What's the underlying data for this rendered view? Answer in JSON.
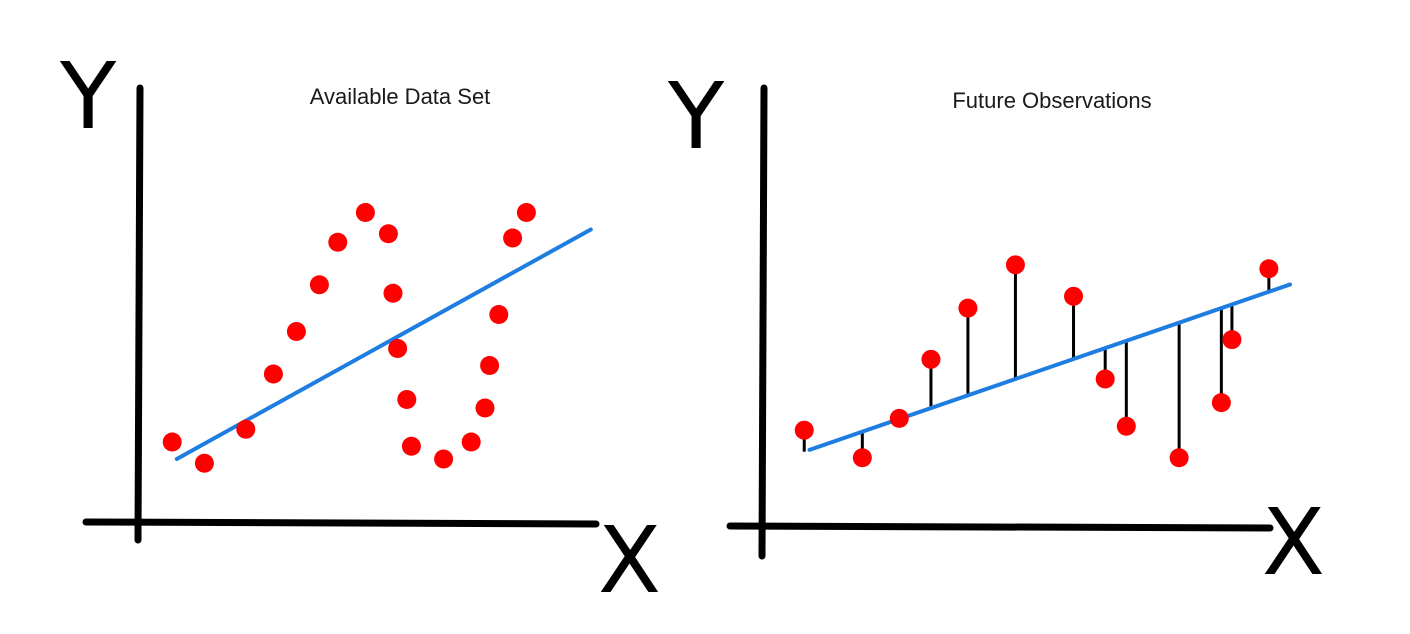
{
  "colors": {
    "points": "#ff0000",
    "fit_line": "#1e7de0",
    "axes": "#000000",
    "residuals": "#000000"
  },
  "panels": [
    {
      "title": "Available Data Set",
      "x_letter": "X",
      "y_letter": "Y",
      "fit": {
        "x1": 0.8,
        "y1": 1.2,
        "x2": 9.8,
        "y2": 6.6
      },
      "points": [
        [
          0.7,
          1.6
        ],
        [
          1.4,
          1.1
        ],
        [
          2.3,
          1.9
        ],
        [
          2.9,
          3.2
        ],
        [
          3.4,
          4.2
        ],
        [
          3.9,
          5.3
        ],
        [
          4.3,
          6.3
        ],
        [
          4.9,
          7.0
        ],
        [
          5.4,
          6.5
        ],
        [
          5.5,
          5.1
        ],
        [
          5.6,
          3.8
        ],
        [
          5.8,
          2.6
        ],
        [
          5.9,
          1.5
        ],
        [
          6.6,
          1.2
        ],
        [
          7.2,
          1.6
        ],
        [
          7.5,
          2.4
        ],
        [
          7.6,
          3.4
        ],
        [
          7.8,
          4.6
        ],
        [
          8.1,
          6.4
        ],
        [
          8.4,
          7.0
        ]
      ],
      "show_residuals": false
    },
    {
      "title": "Future Observations",
      "x_letter": "X",
      "y_letter": "Y",
      "fit": {
        "x1": 0.9,
        "y1": 1.4,
        "x2": 10.0,
        "y2": 5.6
      },
      "points": [
        [
          0.8,
          1.9
        ],
        [
          1.9,
          1.2
        ],
        [
          2.6,
          2.2
        ],
        [
          3.2,
          3.7
        ],
        [
          3.9,
          5.0
        ],
        [
          4.8,
          6.1
        ],
        [
          5.9,
          5.3
        ],
        [
          6.5,
          3.2
        ],
        [
          6.9,
          2.0
        ],
        [
          7.9,
          1.2
        ],
        [
          8.7,
          2.6
        ],
        [
          8.9,
          4.2
        ],
        [
          9.6,
          6.0
        ]
      ],
      "show_residuals": true
    }
  ]
}
